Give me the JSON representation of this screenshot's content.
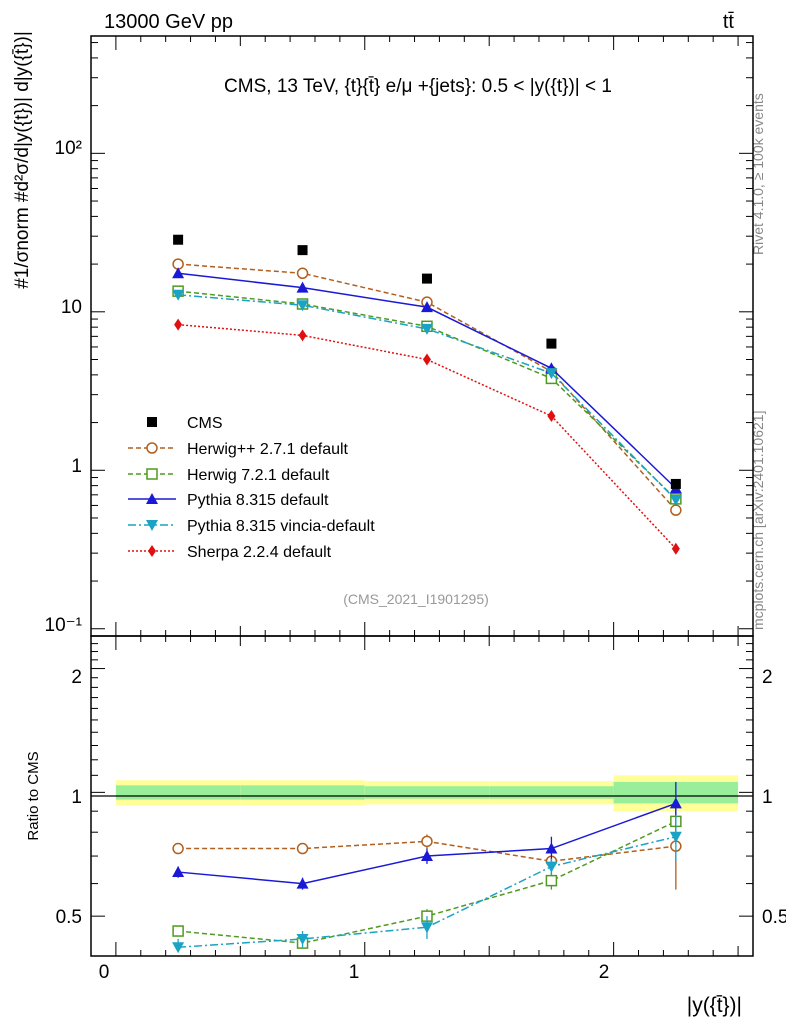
{
  "header": {
    "energy_label": "13000 GeV pp",
    "process_label": "tt̄"
  },
  "side": {
    "rivet_label": "Rivet 4.1.0, ≥ 100k events",
    "site_label": "mcplots.cern.ch [arXiv:2401.10621]"
  },
  "main_title": "CMS, 13 TeV, {t}{t̄} e/μ +{jets}: 0.5 < |y({t})| < 1",
  "ylabel_main": "#1/σnorm #d²σ/d|y({t})| d|y({t̄})|",
  "ylabel_ratio": "Ratio to CMS",
  "xlabel": "|y({t̄})|",
  "analysis_id": "(CMS_2021_I1901295)",
  "main_ticks": [
    "10⁻¹",
    "1",
    "10",
    "10²"
  ],
  "ratio_ticks": [
    "0.5",
    "1",
    "2"
  ],
  "x_ticks": [
    "0",
    "1",
    "2"
  ],
  "chart_data": {
    "type": "line",
    "x": [
      0.25,
      0.75,
      1.25,
      1.75,
      2.25
    ],
    "bin_edges": [
      0,
      0.5,
      1.0,
      1.5,
      2.0,
      2.5
    ],
    "xlim": [
      -0.1,
      2.56
    ],
    "ylim_main": [
      0.09,
      550
    ],
    "ylim_ratio": [
      0.4,
      2.4
    ],
    "yscale": "log",
    "data": {
      "name": "CMS",
      "values": [
        28.5,
        24.5,
        16.2,
        6.3,
        0.82
      ],
      "band_inner": [
        0.04,
        0.04,
        0.035,
        0.035,
        0.06
      ],
      "band_outer": [
        0.07,
        0.07,
        0.065,
        0.065,
        0.1
      ]
    },
    "series": [
      {
        "name": "Herwig++ 2.7.1 default",
        "color": "#b25f1e",
        "marker": "open-circle",
        "dash": "5,3",
        "values": [
          20.0,
          17.5,
          11.5,
          4.2,
          0.56
        ],
        "ratio": [
          0.73,
          0.73,
          0.76,
          0.68,
          0.74
        ],
        "ratio_err": [
          0.01,
          0.01,
          0.03,
          0.02,
          0.16
        ]
      },
      {
        "name": "Herwig 7.2.1 default",
        "color": "#4f9a1f",
        "marker": "open-square",
        "dash": "5,3",
        "values": [
          13.5,
          11.2,
          8.1,
          3.8,
          0.66
        ],
        "ratio": [
          0.46,
          0.43,
          0.5,
          0.61,
          0.85
        ],
        "ratio_err": [
          0.01,
          0.01,
          0.02,
          0.03,
          0.1
        ]
      },
      {
        "name": "Pythia 8.315 default",
        "color": "#1a1ad6",
        "marker": "filled-triangle-up",
        "dash": "",
        "values": [
          17.5,
          14.2,
          10.7,
          4.4,
          0.77
        ],
        "ratio": [
          0.64,
          0.6,
          0.7,
          0.73,
          0.94
        ],
        "ratio_err": [
          0.02,
          0.02,
          0.03,
          0.05,
          0.12
        ]
      },
      {
        "name": "Pythia 8.315 vincia-default",
        "color": "#1aa3c4",
        "marker": "filled-triangle-down",
        "dash": "8,3,2,3",
        "values": [
          12.8,
          11.0,
          7.8,
          4.1,
          0.65
        ],
        "ratio": [
          0.42,
          0.44,
          0.47,
          0.66,
          0.78
        ],
        "ratio_err": [
          0.02,
          0.02,
          0.03,
          0.03,
          0.1
        ]
      },
      {
        "name": "Sherpa 2.2.4 default",
        "color": "#e01010",
        "marker": "filled-diamond",
        "dash": "2,2",
        "values": [
          8.3,
          7.1,
          5.0,
          2.2,
          0.32
        ],
        "ratio": null,
        "ratio_err": null
      }
    ]
  },
  "legend": {
    "cms_label": "CMS",
    "herwigpp_label": "Herwig++ 2.7.1 default",
    "herwig7_label": "Herwig 7.2.1 default",
    "pythia_label": "Pythia 8.315 default",
    "vincia_label": "Pythia 8.315 vincia-default",
    "sherpa_label": "Sherpa 2.2.4 default"
  }
}
